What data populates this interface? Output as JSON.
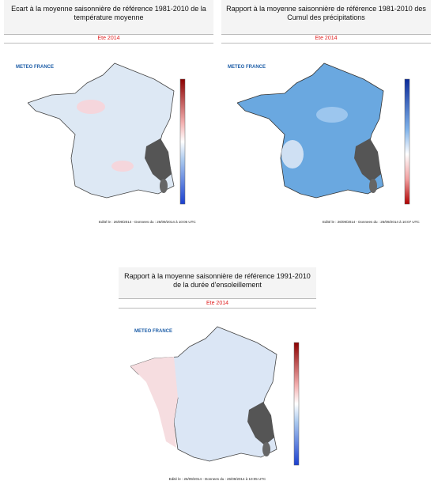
{
  "panels": [
    {
      "title": "Ecart à la moyenne saisonnière de référence 1981-2010 de la température moyenne",
      "subtitle": "Ete 2014",
      "logo": "METEO FRANCE",
      "footer": "Edité le : 26/09/2014 - Donnees du : 26/09/2014 à 10:06 UTC"
    },
    {
      "title": "Rapport à la moyenne saisonnière de référence 1981-2010 des Cumul des précipitations",
      "subtitle": "Ete 2014",
      "logo": "METEO FRANCE",
      "footer": "Edité le : 26/09/2014 - Donnees du : 26/09/2014 à 10:07 UTC"
    },
    {
      "title": "Rapport à la moyenne saisonnière de référence 1991-2010 de la durée d'ensoleillement",
      "subtitle": "Ete 2014",
      "logo": "METEO FRANCE",
      "footer": "Edité le : 26/09/2014 - Donnees du : 26/09/2014 à 10:05 UTC"
    }
  ]
}
